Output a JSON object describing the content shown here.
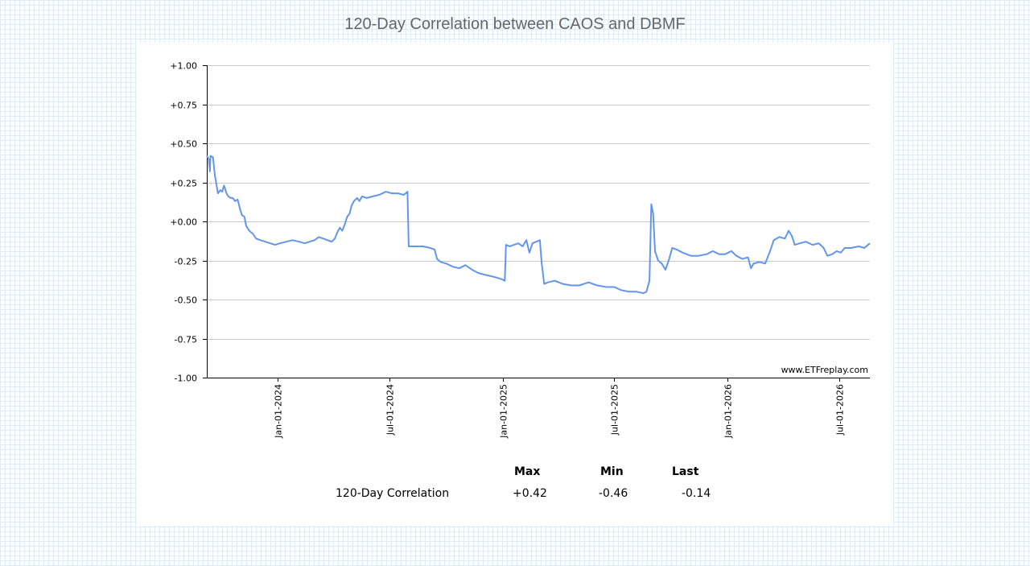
{
  "page": {
    "title": "120-Day Correlation between CAOS and DBMF"
  },
  "chart_data": {
    "type": "line",
    "title": "120-Day Correlation between CAOS and DBMF",
    "xlabel": "",
    "ylabel": "",
    "ylim": [
      -1.0,
      1.0
    ],
    "xlim": [
      "2023-09-08",
      "2026-08-20"
    ],
    "y_ticks": [
      "+1.00",
      "+0.75",
      "+0.50",
      "+0.25",
      "+0.00",
      "-0.25",
      "-0.50",
      "-0.75",
      "-1.00"
    ],
    "x_ticks": [
      "Jan-01-2024",
      "Jul-01-2024",
      "Jan-01-2025",
      "Jul-01-2025",
      "Jan-01-2026",
      "Jul-01-2026"
    ],
    "grid": "horizontal",
    "watermark": "www.ETFreplay.com",
    "line_color": "#6495ED",
    "series": [
      {
        "name": "120-Day Correlation",
        "points": [
          [
            "2023-09-08",
            0.42
          ],
          [
            "2023-09-11",
            0.4
          ],
          [
            "2023-09-13",
            0.32
          ],
          [
            "2023-09-14",
            0.42
          ],
          [
            "2023-09-18",
            0.41
          ],
          [
            "2023-09-21",
            0.3
          ],
          [
            "2023-09-26",
            0.18
          ],
          [
            "2023-09-30",
            0.2
          ],
          [
            "2023-10-03",
            0.19
          ],
          [
            "2023-10-06",
            0.23
          ],
          [
            "2023-10-10",
            0.18
          ],
          [
            "2023-10-13",
            0.16
          ],
          [
            "2023-10-17",
            0.15
          ],
          [
            "2023-10-20",
            0.15
          ],
          [
            "2023-10-24",
            0.13
          ],
          [
            "2023-10-28",
            0.14
          ],
          [
            "2023-11-01",
            0.08
          ],
          [
            "2023-11-04",
            0.04
          ],
          [
            "2023-11-08",
            0.03
          ],
          [
            "2023-11-11",
            -0.03
          ],
          [
            "2023-11-16",
            -0.06
          ],
          [
            "2023-11-22",
            -0.08
          ],
          [
            "2023-11-27",
            -0.11
          ],
          [
            "2023-12-04",
            -0.12
          ],
          [
            "2023-12-12",
            -0.13
          ],
          [
            "2023-12-20",
            -0.14
          ],
          [
            "2023-12-28",
            -0.15
          ],
          [
            "2024-01-05",
            -0.14
          ],
          [
            "2024-01-15",
            -0.13
          ],
          [
            "2024-01-25",
            -0.12
          ],
          [
            "2024-02-05",
            -0.13
          ],
          [
            "2024-02-14",
            -0.14
          ],
          [
            "2024-02-22",
            -0.13
          ],
          [
            "2024-03-01",
            -0.12
          ],
          [
            "2024-03-08",
            -0.1
          ],
          [
            "2024-03-15",
            -0.11
          ],
          [
            "2024-03-22",
            -0.12
          ],
          [
            "2024-03-29",
            -0.13
          ],
          [
            "2024-04-03",
            -0.11
          ],
          [
            "2024-04-07",
            -0.07
          ],
          [
            "2024-04-11",
            -0.04
          ],
          [
            "2024-04-15",
            -0.06
          ],
          [
            "2024-04-19",
            -0.02
          ],
          [
            "2024-04-23",
            0.03
          ],
          [
            "2024-04-27",
            0.05
          ],
          [
            "2024-04-30",
            0.1
          ],
          [
            "2024-05-04",
            0.13
          ],
          [
            "2024-05-09",
            0.15
          ],
          [
            "2024-05-13",
            0.13
          ],
          [
            "2024-05-17",
            0.16
          ],
          [
            "2024-05-25",
            0.15
          ],
          [
            "2024-06-03",
            0.16
          ],
          [
            "2024-06-14",
            0.17
          ],
          [
            "2024-06-25",
            0.19
          ],
          [
            "2024-07-04",
            0.18
          ],
          [
            "2024-07-14",
            0.18
          ],
          [
            "2024-07-24",
            0.17
          ],
          [
            "2024-07-30",
            0.19
          ],
          [
            "2024-08-01",
            -0.16
          ],
          [
            "2024-08-12",
            -0.16
          ],
          [
            "2024-08-24",
            -0.16
          ],
          [
            "2024-09-05",
            -0.17
          ],
          [
            "2024-09-12",
            -0.18
          ],
          [
            "2024-09-16",
            -0.24
          ],
          [
            "2024-09-22",
            -0.26
          ],
          [
            "2024-10-01",
            -0.27
          ],
          [
            "2024-10-12",
            -0.29
          ],
          [
            "2024-10-22",
            -0.3
          ],
          [
            "2024-11-01",
            -0.28
          ],
          [
            "2024-11-12",
            -0.31
          ],
          [
            "2024-11-22",
            -0.33
          ],
          [
            "2024-12-01",
            -0.34
          ],
          [
            "2024-12-12",
            -0.35
          ],
          [
            "2024-12-22",
            -0.36
          ],
          [
            "2024-12-30",
            -0.37
          ],
          [
            "2025-01-04",
            -0.38
          ],
          [
            "2025-01-06",
            -0.15
          ],
          [
            "2025-01-12",
            -0.16
          ],
          [
            "2025-01-19",
            -0.15
          ],
          [
            "2025-01-26",
            -0.14
          ],
          [
            "2025-02-02",
            -0.16
          ],
          [
            "2025-02-08",
            -0.12
          ],
          [
            "2025-02-13",
            -0.2
          ],
          [
            "2025-02-18",
            -0.14
          ],
          [
            "2025-02-24",
            -0.13
          ],
          [
            "2025-03-02",
            -0.12
          ],
          [
            "2025-03-05",
            -0.27
          ],
          [
            "2025-03-09",
            -0.4
          ],
          [
            "2025-03-15",
            -0.39
          ],
          [
            "2025-03-26",
            -0.38
          ],
          [
            "2025-04-08",
            -0.4
          ],
          [
            "2025-04-22",
            -0.41
          ],
          [
            "2025-05-05",
            -0.41
          ],
          [
            "2025-05-20",
            -0.39
          ],
          [
            "2025-06-03",
            -0.41
          ],
          [
            "2025-06-18",
            -0.42
          ],
          [
            "2025-07-01",
            -0.42
          ],
          [
            "2025-07-12",
            -0.44
          ],
          [
            "2025-07-25",
            -0.45
          ],
          [
            "2025-08-06",
            -0.45
          ],
          [
            "2025-08-17",
            -0.46
          ],
          [
            "2025-08-22",
            -0.45
          ],
          [
            "2025-08-27",
            -0.38
          ],
          [
            "2025-08-30",
            0.11
          ],
          [
            "2025-09-02",
            0.05
          ],
          [
            "2025-09-05",
            -0.19
          ],
          [
            "2025-09-10",
            -0.25
          ],
          [
            "2025-09-16",
            -0.27
          ],
          [
            "2025-09-22",
            -0.31
          ],
          [
            "2025-09-28",
            -0.24
          ],
          [
            "2025-10-03",
            -0.17
          ],
          [
            "2025-10-10",
            -0.18
          ],
          [
            "2025-10-20",
            -0.2
          ],
          [
            "2025-11-02",
            -0.22
          ],
          [
            "2025-11-15",
            -0.22
          ],
          [
            "2025-11-28",
            -0.21
          ],
          [
            "2025-12-08",
            -0.19
          ],
          [
            "2025-12-18",
            -0.21
          ],
          [
            "2025-12-28",
            -0.21
          ],
          [
            "2026-01-07",
            -0.19
          ],
          [
            "2026-01-15",
            -0.22
          ],
          [
            "2026-01-25",
            -0.24
          ],
          [
            "2026-02-03",
            -0.23
          ],
          [
            "2026-02-08",
            -0.3
          ],
          [
            "2026-02-12",
            -0.27
          ],
          [
            "2026-02-22",
            -0.26
          ],
          [
            "2026-03-03",
            -0.27
          ],
          [
            "2026-03-10",
            -0.2
          ],
          [
            "2026-03-17",
            -0.12
          ],
          [
            "2026-03-26",
            -0.1
          ],
          [
            "2026-04-04",
            -0.11
          ],
          [
            "2026-04-10",
            -0.06
          ],
          [
            "2026-04-15",
            -0.09
          ],
          [
            "2026-04-20",
            -0.15
          ],
          [
            "2026-04-28",
            -0.14
          ],
          [
            "2026-05-08",
            -0.13
          ],
          [
            "2026-05-19",
            -0.15
          ],
          [
            "2026-05-29",
            -0.14
          ],
          [
            "2026-06-06",
            -0.17
          ],
          [
            "2026-06-12",
            -0.22
          ],
          [
            "2026-06-20",
            -0.21
          ],
          [
            "2026-06-27",
            -0.19
          ],
          [
            "2026-07-04",
            -0.2
          ],
          [
            "2026-07-10",
            -0.17
          ],
          [
            "2026-07-20",
            -0.17
          ],
          [
            "2026-08-02",
            -0.16
          ],
          [
            "2026-08-11",
            -0.17
          ],
          [
            "2026-08-20",
            -0.14
          ]
        ]
      }
    ]
  },
  "stats": {
    "headers": {
      "max": "Max",
      "min": "Min",
      "last": "Last"
    },
    "row": {
      "label": "120-Day Correlation",
      "max": "+0.42",
      "min": "-0.46",
      "last": "-0.14"
    }
  }
}
